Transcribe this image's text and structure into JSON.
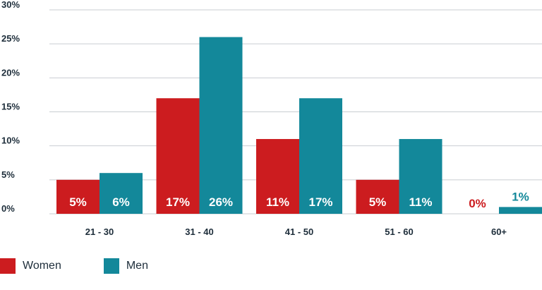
{
  "colors": {
    "women": "#cc1c1f",
    "men": "#13889a",
    "grid": "#c9cdd2",
    "text": "#1d2d3a"
  },
  "chart_data": {
    "type": "bar",
    "categories": [
      "21 - 30",
      "31 - 40",
      "41 - 50",
      "51 - 60",
      "60+"
    ],
    "series": [
      {
        "name": "Women",
        "values": [
          5,
          17,
          11,
          5,
          0
        ],
        "labels": [
          "5%",
          "17%",
          "11%",
          "5%",
          "0%"
        ]
      },
      {
        "name": "Men",
        "values": [
          6,
          26,
          17,
          11,
          1
        ],
        "labels": [
          "6%",
          "26%",
          "17%",
          "11%",
          "1%"
        ]
      }
    ],
    "ylim": [
      0,
      30
    ],
    "yticks": [
      "0%",
      "5%",
      "10%",
      "15%",
      "20%",
      "25%",
      "30%"
    ],
    "grid": true,
    "legend": "bottom-left"
  }
}
